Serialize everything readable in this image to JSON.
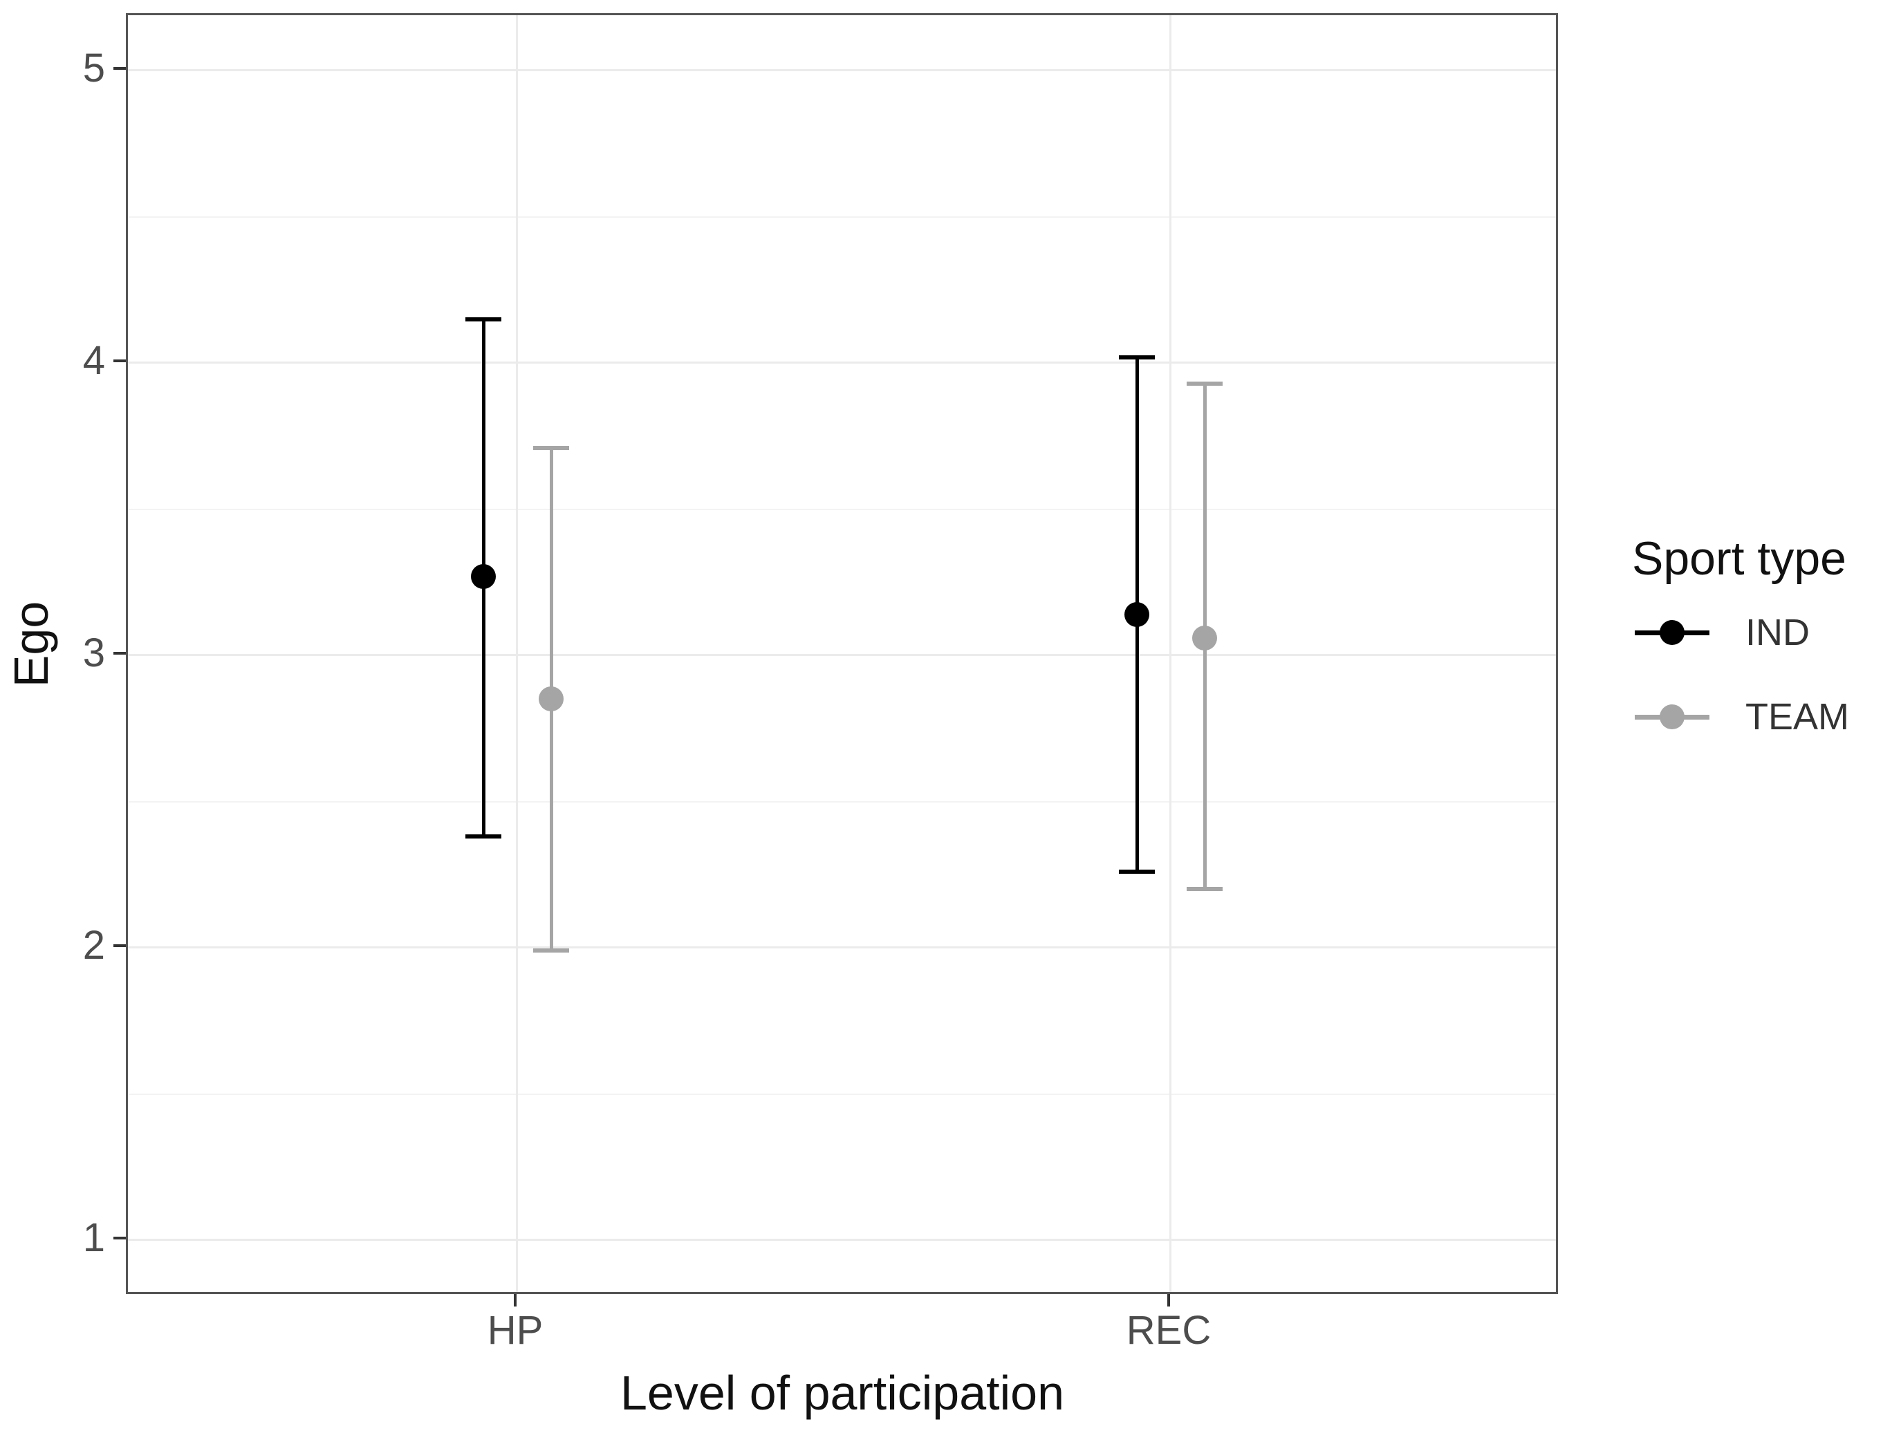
{
  "chart_data": {
    "type": "scatter",
    "mark": "pointrange-errorbar",
    "title": "",
    "xlabel": "Level of participation",
    "ylabel": "Ego",
    "categories": [
      "HP",
      "REC"
    ],
    "y_ticks": [
      1,
      2,
      3,
      4,
      5
    ],
    "ylim": [
      0.81,
      5.19
    ],
    "grid": {
      "major": true,
      "minor": true,
      "color_major": "#ebebeb",
      "color_minor": "#f3f3f3"
    },
    "legend": {
      "title": "Sport type",
      "position": "right"
    },
    "series": [
      {
        "name": "IND",
        "color": "#000000",
        "points": [
          {
            "category": "HP",
            "mean": 3.27,
            "lower": 2.38,
            "upper": 4.15
          },
          {
            "category": "REC",
            "mean": 3.14,
            "lower": 2.26,
            "upper": 4.02
          }
        ]
      },
      {
        "name": "TEAM",
        "color": "#a5a5a5",
        "points": [
          {
            "category": "HP",
            "mean": 2.85,
            "lower": 1.99,
            "upper": 3.71
          },
          {
            "category": "REC",
            "mean": 3.06,
            "lower": 2.2,
            "upper": 3.93
          }
        ]
      }
    ],
    "panel_border_color": "#555555",
    "axis_text_color": "#4d4d4d"
  }
}
